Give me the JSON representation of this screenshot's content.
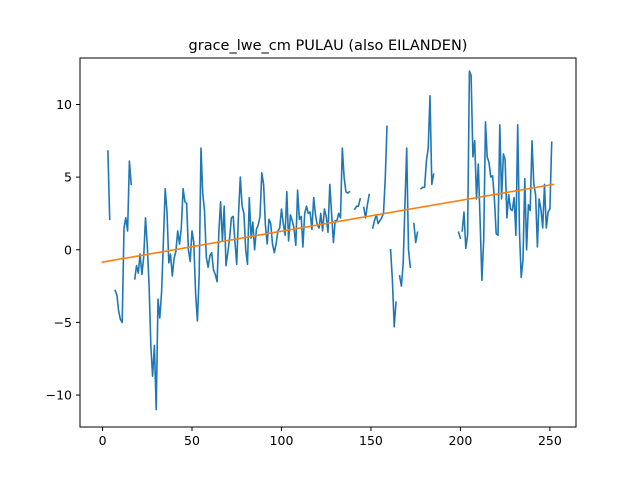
{
  "chart_data": {
    "type": "line",
    "title": "grace_lwe_cm PULAU (also EILANDEN)",
    "xlabel": "",
    "ylabel": "",
    "xlim": [
      -12.6,
      264.6
    ],
    "ylim": [
      -12.2,
      13.2
    ],
    "x_ticks": [
      0,
      50,
      100,
      150,
      200,
      250
    ],
    "y_ticks": [
      -10,
      -5,
      0,
      5,
      10
    ],
    "grid": false,
    "series": [
      {
        "name": "",
        "color": "#1f77b4",
        "segments": [
          {
            "x": [
              3,
              4
            ],
            "y": [
              6.8,
              2.1
            ]
          },
          {
            "x": [
              7,
              8,
              9,
              10,
              11,
              12,
              13,
              14,
              15,
              16
            ],
            "y": [
              -2.8,
              -3.1,
              -4.2,
              -4.8,
              -5.0,
              1.5,
              2.2,
              1.3,
              6.1,
              4.5
            ]
          },
          {
            "x": [
              18,
              19,
              20,
              21,
              22,
              23,
              24,
              25,
              26,
              27,
              28,
              29,
              30,
              31,
              32,
              33,
              34,
              35,
              36,
              37,
              38,
              39,
              40,
              41,
              42,
              43,
              44,
              45,
              46,
              47,
              48,
              49,
              50,
              51,
              52,
              53,
              54,
              55,
              56,
              57,
              58,
              59,
              60,
              61,
              62,
              63,
              64,
              65,
              66,
              67,
              68,
              69,
              70,
              71,
              72,
              73,
              74,
              75,
              76,
              77,
              78,
              79,
              80,
              81,
              82,
              83,
              84,
              85,
              86,
              87,
              88,
              89,
              90,
              91,
              92,
              93,
              94,
              95,
              96,
              97,
              98,
              99,
              100,
              101,
              102,
              103,
              104,
              105,
              106,
              107,
              108,
              109,
              110,
              111,
              112,
              113,
              114,
              115,
              116,
              117,
              118,
              119,
              120,
              121,
              122,
              123,
              124,
              125,
              126,
              127,
              128,
              129,
              130,
              131,
              132,
              133,
              134,
              135,
              136,
              137,
              138
            ],
            "y": [
              -2.0,
              -1.1,
              -1.6,
              -0.3,
              -1.7,
              -0.5,
              2.2,
              0.3,
              -2.5,
              -6.7,
              -8.7,
              -6.6,
              -11.0,
              -3.4,
              -4.7,
              -2.9,
              0.6,
              4.2,
              2.6,
              -0.9,
              -0.3,
              -1.8,
              -0.6,
              -0.1,
              1.3,
              0.4,
              1.5,
              4.2,
              3.3,
              3.2,
              0.0,
              -0.8,
              1.3,
              0.5,
              -3.0,
              -4.9,
              -1.7,
              7.0,
              3.9,
              2.7,
              -0.5,
              -1.2,
              -0.4,
              -0.2,
              -1.4,
              -1.7,
              -2.2,
              1.3,
              3.3,
              0.6,
              3.0,
              -1.1,
              -0.2,
              0.8,
              2.2,
              2.3,
              0.5,
              -1.0,
              2.4,
              5.0,
              3.0,
              2.5,
              0.0,
              -1.0,
              3.6,
              0.8,
              1.9,
              0.0,
              1.4,
              1.7,
              2.3,
              5.3,
              4.5,
              1.7,
              0.4,
              2.1,
              1.8,
              0.4,
              -0.2,
              0.4,
              1.3,
              1.5,
              2.8,
              1.8,
              1.0,
              4.0,
              0.6,
              2.4,
              2.0,
              1.5,
              0.3,
              4.1,
              2.1,
              2.3,
              0.2,
              2.5,
              3.0,
              2.5,
              2.6,
              1.4,
              3.6,
              2.4,
              1.7,
              1.5,
              2.5,
              1.3,
              2.8,
              2.3,
              1.2,
              4.5,
              2.5,
              0.5,
              2.0,
              2.0,
              2.5,
              2.2,
              7.0,
              5.0,
              4.0,
              3.9,
              4.0
            ]
          },
          {
            "x": [
              141,
              142,
              143,
              144
            ],
            "y": [
              2.8,
              3.0,
              3.0,
              3.5
            ]
          },
          {
            "x": [
              146,
              147,
              148,
              149
            ],
            "y": [
              2.9,
              2.2,
              3.1,
              3.8
            ]
          },
          {
            "x": [
              151,
              152,
              153,
              154,
              155,
              156,
              157,
              158,
              159
            ],
            "y": [
              1.5,
              2.0,
              2.4,
              1.8,
              2.0,
              2.2,
              2.5,
              5.0,
              8.5
            ]
          },
          {
            "x": [
              161,
              162,
              163,
              164
            ],
            "y": [
              0.0,
              -2.1,
              -5.3,
              -3.6
            ]
          },
          {
            "x": [
              166,
              167,
              168,
              169,
              170,
              171,
              172
            ],
            "y": [
              -1.8,
              -2.5,
              -0.9,
              3.0,
              7.0,
              0.0,
              -1.2
            ]
          },
          {
            "x": [
              174,
              175,
              176
            ],
            "y": [
              1.8,
              0.5,
              1.2
            ]
          },
          {
            "x": [
              178,
              179,
              180,
              181,
              182,
              183,
              184,
              185
            ],
            "y": [
              4.2,
              4.3,
              4.3,
              6.1,
              7.0,
              10.6,
              4.5,
              5.2
            ]
          },
          {
            "x": [
              199,
              200
            ],
            "y": [
              1.2,
              0.8
            ]
          },
          {
            "x": [
              201,
              202,
              203,
              204,
              205,
              206,
              207,
              208,
              209,
              210,
              211,
              212,
              213,
              214,
              215,
              216,
              217,
              218,
              219,
              220,
              221,
              222,
              223,
              224,
              225,
              226,
              227,
              228,
              229,
              230,
              231,
              232,
              233,
              234,
              235,
              236,
              237,
              238,
              239,
              240,
              241,
              242,
              243,
              244,
              245,
              246,
              247,
              248,
              249,
              250,
              251
            ],
            "y": [
              1.3,
              2.6,
              0.1,
              1.0,
              12.3,
              12.0,
              6.4,
              7.5,
              3.5,
              5.9,
              2.0,
              -2.1,
              0.7,
              8.8,
              6.4,
              6.0,
              5.0,
              5.1,
              3.5,
              1.1,
              1.0,
              8.6,
              3.5,
              6.6,
              6.2,
              2.2,
              3.8,
              2.8,
              2.7,
              3.6,
              1.0,
              8.6,
              1.2,
              -1.9,
              -0.7,
              4.9,
              0.0,
              3.1,
              2.7,
              7.5,
              4.5,
              3.8,
              0.2,
              3.5,
              2.8,
              1.5,
              4.5,
              1.5,
              2.6,
              2.8,
              7.4
            ]
          }
        ]
      },
      {
        "name": "",
        "color": "#ff7f0e",
        "x": [
          0,
          252
        ],
        "y": [
          -0.85,
          4.5
        ]
      }
    ]
  }
}
